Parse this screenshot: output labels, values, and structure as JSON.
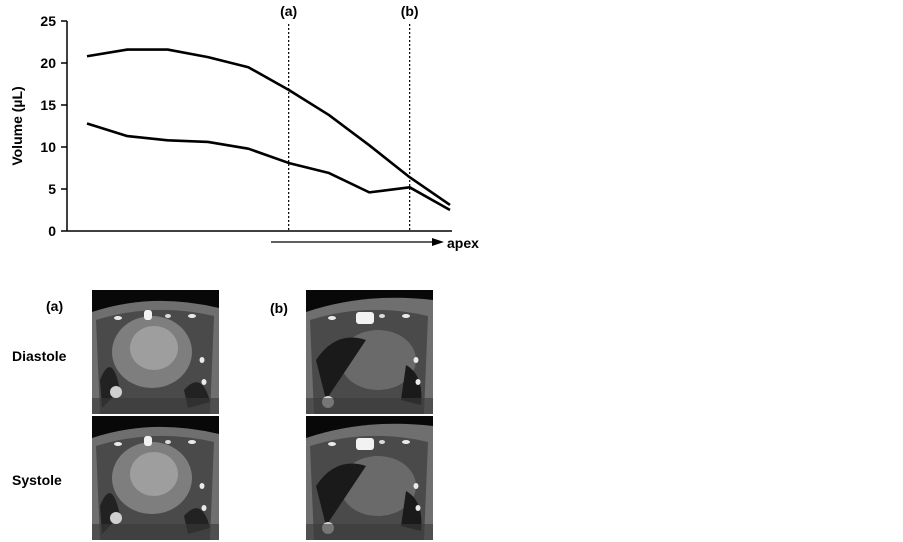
{
  "chart_data": {
    "type": "line",
    "ylabel": "Volume (µL)",
    "xlabel": "apex",
    "ylim": [
      0,
      25
    ],
    "yticks": [
      "0",
      "5",
      "10",
      "15",
      "20",
      "25"
    ],
    "x": [
      1,
      2,
      3,
      4,
      5,
      6,
      7,
      8,
      9,
      10
    ],
    "series": [
      {
        "values": [
          20.8,
          21.6,
          21.6,
          20.7,
          19.5,
          16.8,
          13.8,
          10.2,
          6.4,
          3.1
        ]
      },
      {
        "values": [
          12.8,
          11.3,
          10.8,
          10.6,
          9.8,
          8.1,
          6.9,
          4.6,
          5.2,
          2.5
        ]
      }
    ],
    "markers": [
      {
        "label": "(a)",
        "x": 6.0
      },
      {
        "label": "(b)",
        "x": 9.0
      }
    ],
    "grid": false
  },
  "panels": {
    "a_label": "(a)",
    "b_label": "(b)",
    "diastole_label": "Diastole",
    "systole_label": "Systole"
  }
}
